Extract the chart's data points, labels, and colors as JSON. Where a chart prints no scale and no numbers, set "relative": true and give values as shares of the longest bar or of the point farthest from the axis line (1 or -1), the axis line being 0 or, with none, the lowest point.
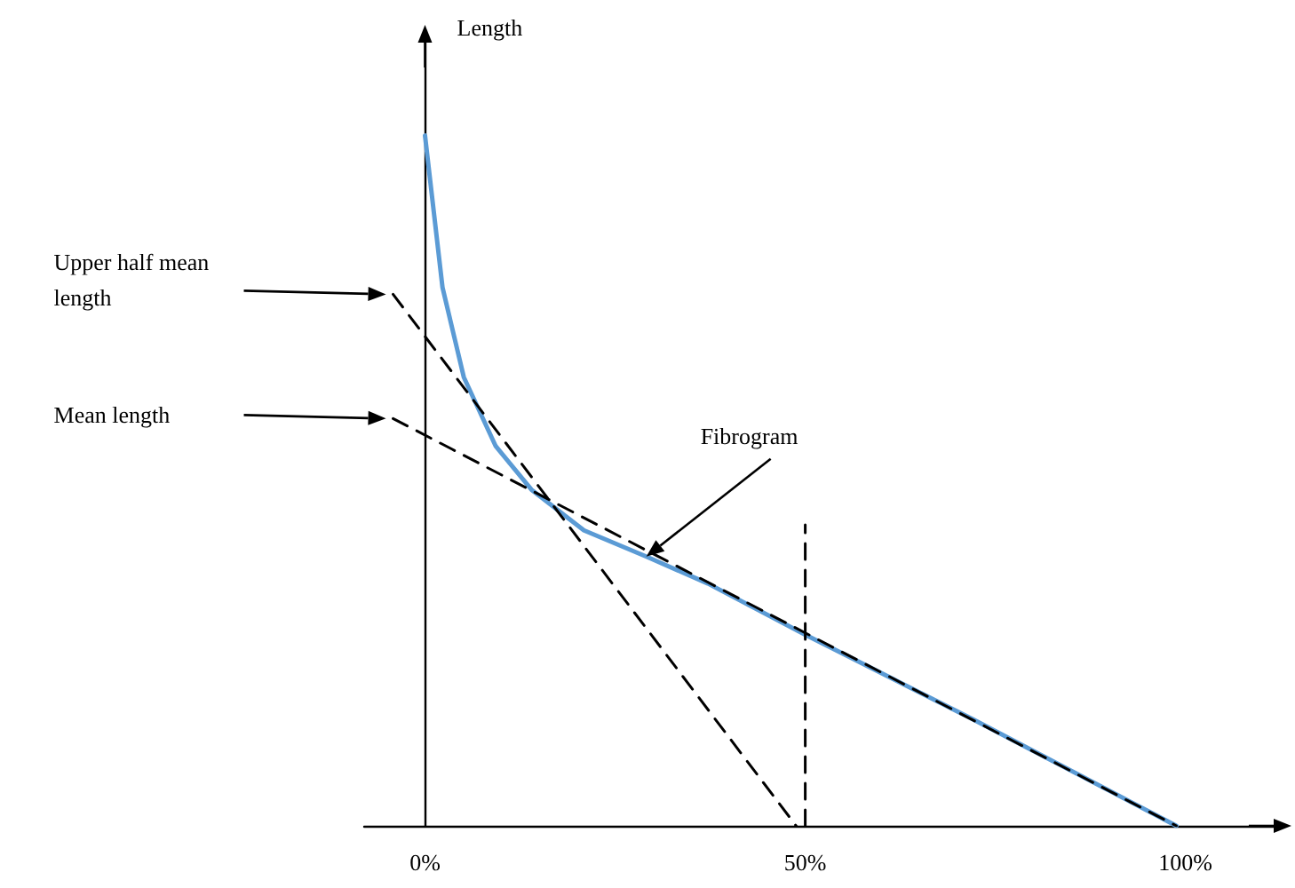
{
  "chart_data": {
    "type": "line",
    "ylabel": "Length",
    "relative": true,
    "xlim": [
      -8,
      113
    ],
    "xticks": [
      {
        "value": 0,
        "label": "0%"
      },
      {
        "value": 50,
        "label": "50%"
      },
      {
        "value": 100,
        "label": "100%"
      }
    ],
    "series": [
      {
        "color": "#5b9bd5",
        "line_style": "solid",
        "x": [
          0,
          2.3,
          5.1,
          9.3,
          14.0,
          20.9,
          29.1,
          37.2,
          50.0,
          72.1,
          98.8
        ],
        "values": [
          1.0,
          0.78,
          0.65,
          0.55,
          0.487,
          0.428,
          0.39,
          0.351,
          0.277,
          0.154,
          0
        ]
      },
      {
        "color": "#000000",
        "line_style": "dashed",
        "x": [
          -4.2,
          48.8
        ],
        "values": [
          0.77,
          0
        ]
      },
      {
        "color": "#000000",
        "line_style": "dashed",
        "x": [
          -4.2,
          98.8
        ],
        "values": [
          0.59,
          0
        ]
      },
      {
        "color": "#000000",
        "line_style": "dashed",
        "x": [
          50,
          50
        ],
        "values": [
          0,
          0.436
        ]
      }
    ],
    "annotations": [
      "Upper half mean length",
      "Mean length",
      "Fibrogram"
    ],
    "marker": "none"
  }
}
